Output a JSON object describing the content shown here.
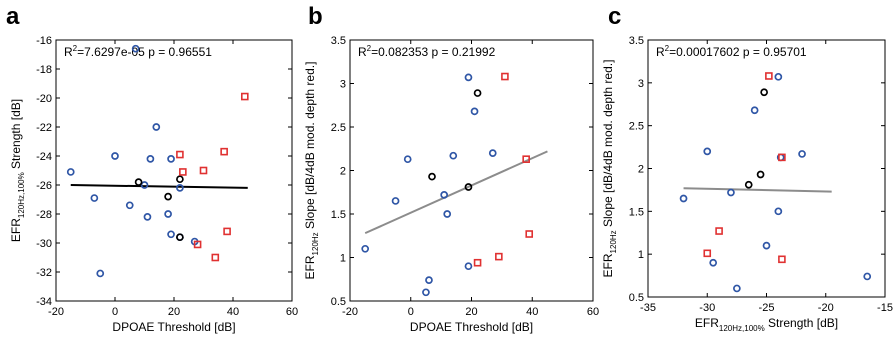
{
  "chart_data": [
    {
      "panel": "a",
      "type": "scatter",
      "xlabel": "DPOAE Threshold [dB]",
      "ylabel": {
        "main": "EFR",
        "sub": "120Hz,100%",
        "rest": " Strength [dB]"
      },
      "annotation": {
        "r_label": "R",
        "r_sup": "2",
        "r_value": "=7.6297e-05",
        "p_text": "p = 0.96551"
      },
      "xlim": [
        -20,
        60
      ],
      "ylim": [
        -34,
        -16
      ],
      "xticks": [
        "-20",
        "0",
        "20",
        "40",
        "60"
      ],
      "yticks": [
        "-34",
        "-32",
        "-30",
        "-28",
        "-26",
        "-24",
        "-22",
        "-20",
        "-18",
        "-16"
      ],
      "fit_line": {
        "x": [
          -15,
          45
        ],
        "y": [
          -26.0,
          -26.2
        ],
        "color": "#000000"
      },
      "series": [
        {
          "marker": "circle",
          "color": "#2f56a6",
          "points": [
            [
              -15,
              -25.1
            ],
            [
              -7,
              -26.9
            ],
            [
              -5,
              -32.1
            ],
            [
              0,
              -24.0
            ],
            [
              5,
              -27.4
            ],
            [
              7,
              -16.6
            ],
            [
              10,
              -26.0
            ],
            [
              11,
              -28.2
            ],
            [
              12,
              -24.2
            ],
            [
              14,
              -22.0
            ],
            [
              18,
              -28.0
            ],
            [
              19,
              -24.2
            ],
            [
              19,
              -29.4
            ],
            [
              22,
              -29.6
            ],
            [
              22,
              -26.2
            ],
            [
              27,
              -29.9
            ]
          ]
        },
        {
          "marker": "circle",
          "color": "#000000",
          "points": [
            [
              8,
              -25.8
            ],
            [
              18,
              -26.8
            ],
            [
              22,
              -25.6
            ],
            [
              22,
              -29.6
            ]
          ]
        },
        {
          "marker": "square",
          "color": "#e03131",
          "points": [
            [
              22,
              -23.9
            ],
            [
              23,
              -25.1
            ],
            [
              28,
              -30.1
            ],
            [
              30,
              -25.0
            ],
            [
              34,
              -31.0
            ],
            [
              37,
              -23.7
            ],
            [
              38,
              -29.2
            ],
            [
              44,
              -19.9
            ]
          ]
        }
      ]
    },
    {
      "panel": "b",
      "type": "scatter",
      "xlabel": "DPOAE Threshold [dB]",
      "ylabel": {
        "main": "EFR",
        "sub": "120Hz",
        "rest": " Slope [dB/4dB mod. depth red.]"
      },
      "annotation": {
        "r_label": "R",
        "r_sup": "2",
        "r_value": "=0.082353",
        "p_text": "p = 0.21992"
      },
      "xlim": [
        -20,
        60
      ],
      "ylim": [
        0.5,
        3.5
      ],
      "xticks": [
        "-20",
        "0",
        "20",
        "40",
        "60"
      ],
      "yticks": [
        "0.5",
        "1",
        "1.5",
        "2",
        "2.5",
        "3",
        "3.5"
      ],
      "fit_line": {
        "x": [
          -15,
          45
        ],
        "y": [
          1.28,
          2.22
        ],
        "color": "#8c8c8c"
      },
      "series": [
        {
          "marker": "circle",
          "color": "#2f56a6",
          "points": [
            [
              -15,
              1.1
            ],
            [
              -5,
              1.65
            ],
            [
              -1,
              2.13
            ],
            [
              5,
              0.6
            ],
            [
              6,
              0.74
            ],
            [
              11,
              1.72
            ],
            [
              12,
              1.5
            ],
            [
              14,
              2.17
            ],
            [
              19,
              0.9
            ],
            [
              19,
              3.07
            ],
            [
              21,
              2.68
            ],
            [
              27,
              2.2
            ]
          ]
        },
        {
          "marker": "circle",
          "color": "#000000",
          "points": [
            [
              7,
              1.93
            ],
            [
              19,
              1.81
            ],
            [
              22,
              2.89
            ]
          ]
        },
        {
          "marker": "square",
          "color": "#e03131",
          "points": [
            [
              22,
              0.94
            ],
            [
              29,
              1.01
            ],
            [
              31,
              3.08
            ],
            [
              38,
              2.13
            ],
            [
              39,
              1.27
            ]
          ]
        }
      ]
    },
    {
      "panel": "c",
      "type": "scatter",
      "xlabel": {
        "main": "EFR",
        "sub": "120Hz,100%",
        "rest": " Strength [dB]"
      },
      "ylabel": {
        "main": "EFR",
        "sub": "120Hz",
        "rest": " Slope [dB/4dB mod. depth red.]"
      },
      "annotation": {
        "r_label": "R",
        "r_sup": "2",
        "r_value": "=0.00017602",
        "p_text": "p = 0.95701"
      },
      "xlim": [
        -35,
        -15
      ],
      "ylim": [
        0.5,
        3.5
      ],
      "xticks": [
        "-35",
        "-30",
        "-25",
        "-20",
        "-15"
      ],
      "yticks": [
        "0.5",
        "1",
        "1.5",
        "2",
        "2.5",
        "3",
        "3.5"
      ],
      "fit_line": {
        "x": [
          -32,
          -19.5
        ],
        "y": [
          1.77,
          1.73
        ],
        "color": "#8c8c8c"
      },
      "series": [
        {
          "marker": "circle",
          "color": "#2f56a6",
          "points": [
            [
              -32,
              1.65
            ],
            [
              -30,
              2.2
            ],
            [
              -29.5,
              0.9
            ],
            [
              -28,
              1.72
            ],
            [
              -27.5,
              0.6
            ],
            [
              -26,
              2.68
            ],
            [
              -25,
              1.1
            ],
            [
              -24,
              1.5
            ],
            [
              -24,
              3.07
            ],
            [
              -23.8,
              2.13
            ],
            [
              -22,
              2.17
            ],
            [
              -16.5,
              0.74
            ]
          ]
        },
        {
          "marker": "circle",
          "color": "#000000",
          "points": [
            [
              -26.5,
              1.81
            ],
            [
              -25.5,
              1.93
            ],
            [
              -25.2,
              2.89
            ]
          ]
        },
        {
          "marker": "square",
          "color": "#e03131",
          "points": [
            [
              -30,
              1.01
            ],
            [
              -29,
              1.27
            ],
            [
              -24.8,
              3.08
            ],
            [
              -23.7,
              2.13
            ],
            [
              -23.7,
              0.94
            ]
          ]
        }
      ]
    }
  ]
}
